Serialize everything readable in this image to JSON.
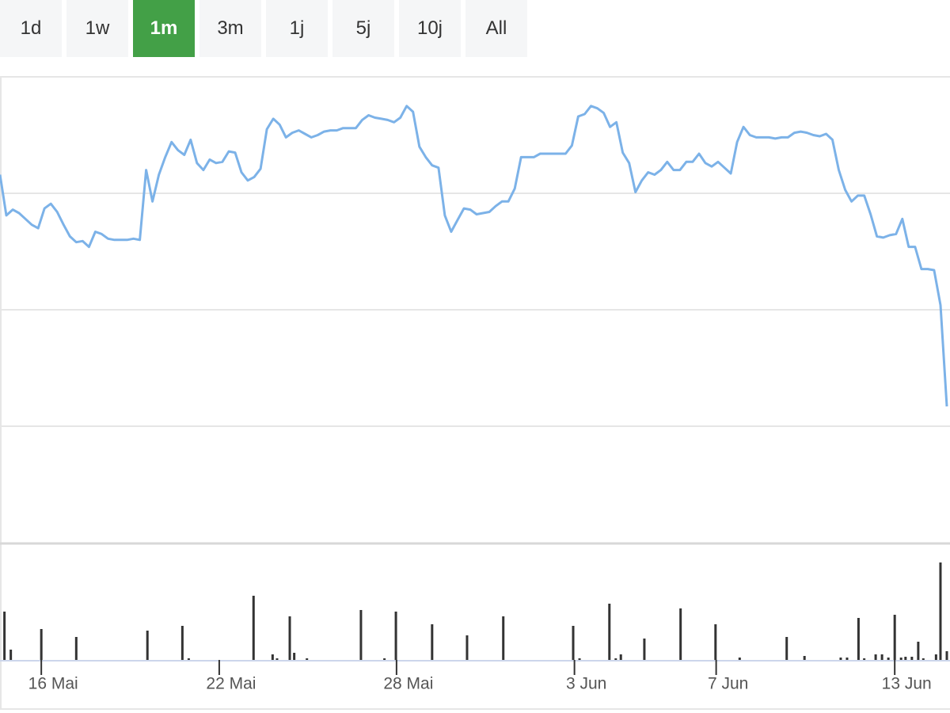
{
  "range_buttons": [
    "1d",
    "1w",
    "1m",
    "3m",
    "1j",
    "5j",
    "10j",
    "All"
  ],
  "active_button": 2,
  "chart_data": [
    {
      "type": "line",
      "color": "#7cb2e8",
      "values": [
        3.16,
        2.81,
        2.86,
        2.83,
        2.78,
        2.73,
        2.7,
        2.87,
        2.91,
        2.84,
        2.73,
        2.63,
        2.58,
        2.59,
        2.54,
        2.67,
        2.65,
        2.61,
        2.6,
        2.6,
        2.6,
        2.61,
        2.6,
        3.2,
        2.93,
        3.16,
        3.31,
        3.44,
        3.37,
        3.33,
        3.46,
        3.26,
        3.2,
        3.29,
        3.26,
        3.27,
        3.36,
        3.35,
        3.18,
        3.11,
        3.14,
        3.21,
        3.55,
        3.64,
        3.59,
        3.48,
        3.52,
        3.54,
        3.51,
        3.48,
        3.5,
        3.53,
        3.54,
        3.54,
        3.56,
        3.56,
        3.56,
        3.63,
        3.67,
        3.65,
        3.64,
        3.63,
        3.61,
        3.65,
        3.75,
        3.7,
        3.4,
        3.31,
        3.24,
        3.22,
        2.81,
        2.67,
        2.77,
        2.87,
        2.86,
        2.82,
        2.83,
        2.84,
        2.89,
        2.93,
        2.93,
        3.04,
        3.31,
        3.31,
        3.31,
        3.34,
        3.34,
        3.34,
        3.34,
        3.34,
        3.41,
        3.66,
        3.68,
        3.75,
        3.73,
        3.69,
        3.57,
        3.61,
        3.35,
        3.26,
        3.01,
        3.11,
        3.18,
        3.16,
        3.2,
        3.27,
        3.2,
        3.2,
        3.27,
        3.27,
        3.34,
        3.26,
        3.23,
        3.27,
        3.22,
        3.17,
        3.44,
        3.57,
        3.5,
        3.48,
        3.48,
        3.48,
        3.47,
        3.48,
        3.48,
        3.52,
        3.53,
        3.52,
        3.5,
        3.49,
        3.51,
        3.46,
        3.2,
        3.03,
        2.93,
        2.98,
        2.98,
        2.82,
        2.63,
        2.62,
        2.64,
        2.65,
        2.78,
        2.54,
        2.54,
        2.35,
        2.35,
        2.34,
        2.04,
        1.17
      ],
      "xlim": [
        0,
        149
      ],
      "ylim": [
        0,
        4
      ],
      "yticks": [
        1,
        2,
        3,
        4
      ],
      "grid": true
    },
    {
      "type": "bar",
      "color": "#333333",
      "x": [
        0.7,
        1.7,
        6.5,
        12.0,
        23.2,
        28.7,
        29.7,
        39.9,
        42.9,
        43.6,
        45.6,
        46.3,
        48.3,
        56.8,
        60.5,
        62.3,
        68.0,
        73.5,
        79.2,
        90.2,
        91.2,
        95.9,
        96.9,
        97.7,
        101.4,
        107.1,
        112.6,
        116.4,
        123.8,
        126.6,
        132.3,
        133.3,
        135.1,
        136.0,
        137.8,
        138.8,
        139.8,
        140.8,
        141.8,
        142.5,
        143.5,
        144.5,
        145.3,
        147.3,
        148.0,
        149.0
      ],
      "values": [
        61,
        13,
        39,
        29,
        37,
        43,
        2,
        81,
        7,
        2,
        55,
        9,
        2,
        63,
        2,
        61,
        45,
        31,
        55,
        43,
        2,
        71,
        2,
        7,
        27,
        65,
        45,
        3,
        29,
        5,
        3,
        3,
        53,
        2,
        7,
        7,
        3,
        57,
        3,
        4,
        4,
        23,
        2,
        7,
        123,
        11
      ],
      "xlim": [
        0,
        149
      ],
      "ylim": [
        0,
        130
      ],
      "xticks": [
        {
          "value": 6.5,
          "label": "16 Mai"
        },
        {
          "value": 34.5,
          "label": "22 Mai"
        },
        {
          "value": 62.4,
          "label": "28 Mai"
        },
        {
          "value": 90.4,
          "label": "3 Jun"
        },
        {
          "value": 112.7,
          "label": "7 Jun"
        },
        {
          "value": 140.8,
          "label": "13 Jun"
        }
      ]
    }
  ]
}
